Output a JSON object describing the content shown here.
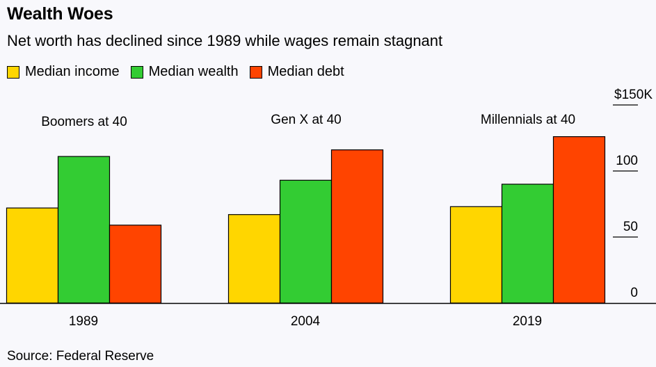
{
  "header": {
    "title": "Wealth Woes",
    "subtitle": "Net worth has declined since 1989 while wages remain stagnant"
  },
  "footer": {
    "source": "Source: Federal Reserve"
  },
  "chart_data": {
    "type": "bar",
    "categories": [
      "1989",
      "2004",
      "2019"
    ],
    "group_annotations": [
      "Boomers at 40",
      "Gen X at 40",
      "Millennials at 40"
    ],
    "series": [
      {
        "name": "Median income",
        "color": "#ffd600",
        "values": [
          72,
          67,
          73
        ]
      },
      {
        "name": "Median wealth",
        "color": "#33cc33",
        "values": [
          111,
          93,
          90
        ]
      },
      {
        "name": "Median debt",
        "color": "#ff4400",
        "values": [
          59,
          116,
          126
        ]
      }
    ],
    "ylim": [
      0,
      150
    ],
    "yticks": [
      0,
      50,
      100,
      150
    ],
    "ytick_labels": [
      "0",
      "50",
      "100",
      "$150K"
    ],
    "y_axis_position": "right",
    "legend_placement": "top-left",
    "grid": false
  }
}
